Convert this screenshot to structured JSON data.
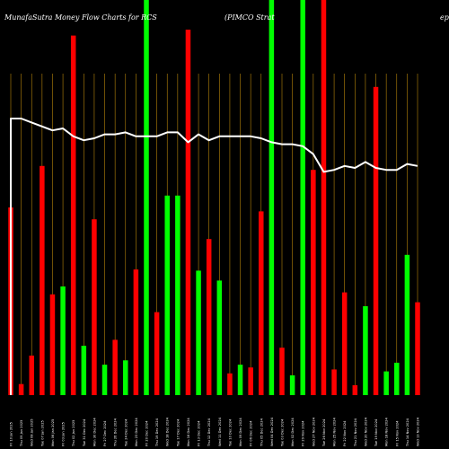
{
  "chart_data": {
    "type": "bar",
    "title": "MunafaSutra  Money Flow  Charts for RCS",
    "subtitle": "(PIMCO Strat",
    "title_right": "ep",
    "colors": {
      "up": "#00ff00",
      "down": "#ff0000",
      "line": "#ffffff",
      "grid": "#b8860b",
      "background": "#000000"
    },
    "ylim": [
      0,
      100
    ],
    "grid": true,
    "bars": [
      {
        "label": "Fri 10 Jan 2025",
        "color": "down",
        "value": 47.5
      },
      {
        "label": "Thu 09 Jan 2025",
        "color": "down",
        "value": 2.8
      },
      {
        "label": "Wed 08 Jan 2025",
        "color": "down",
        "value": 10
      },
      {
        "label": "Tue 07 Jan 2025",
        "color": "down",
        "value": 58
      },
      {
        "label": "Mon 06 Jan 2025",
        "color": "down",
        "value": 25.5
      },
      {
        "label": "Fri 03 Jan 2025",
        "color": "up",
        "value": 27.5
      },
      {
        "label": "Thu 02 Jan 2025",
        "color": "down",
        "value": 91
      },
      {
        "label": "Tue 31 Dec 2024",
        "color": "up",
        "value": 12.5
      },
      {
        "label": "Mon 30 Dec 2024",
        "color": "down",
        "value": 44.5
      },
      {
        "label": "Fri 27 Dec 2024",
        "color": "up",
        "value": 7.7
      },
      {
        "label": "Thu 26 Dec 2024",
        "color": "down",
        "value": 14
      },
      {
        "label": "Tue 24 Dec 2024",
        "color": "up",
        "value": 8.8
      },
      {
        "label": "Mon 23 Dec 2024",
        "color": "down",
        "value": 31.8
      },
      {
        "label": "Fri 20 Dec 2024",
        "color": "up",
        "value": 100
      },
      {
        "label": "Thu 19 Dec 2024",
        "color": "down",
        "value": 21
      },
      {
        "label": "Wed 18 Dec 2024",
        "color": "up",
        "value": 50.5
      },
      {
        "label": "Tue 17 Dec 2024",
        "color": "up",
        "value": 50.5
      },
      {
        "label": "Mon 16 Dec 2024",
        "color": "down",
        "value": 92.5
      },
      {
        "label": "Fri 13 Dec 2024",
        "color": "up",
        "value": 31.5
      },
      {
        "label": "Thu 12 Dec 2024",
        "color": "down",
        "value": 39.5
      },
      {
        "label": "Wed 11 Dec 2024",
        "color": "up",
        "value": 29
      },
      {
        "label": "Tue 10 Dec 2024",
        "color": "down",
        "value": 5.5
      },
      {
        "label": "Mon 09 Dec 2024",
        "color": "up",
        "value": 7.7
      },
      {
        "label": "Fri 06 Dec 2024",
        "color": "down",
        "value": 7
      },
      {
        "label": "Thu 05 Dec 2024",
        "color": "down",
        "value": 46.5
      },
      {
        "label": "Wed 04 Dec 2024",
        "color": "up",
        "value": 100
      },
      {
        "label": "Tue 03 Dec 2024",
        "color": "down",
        "value": 12
      },
      {
        "label": "Mon 02 Dec 2024",
        "color": "up",
        "value": 5
      },
      {
        "label": "Fri 29 Nov 2024",
        "color": "up",
        "value": 100
      },
      {
        "label": "Wed 27 Nov 2024",
        "color": "down",
        "value": 57
      },
      {
        "label": "Tue 26 Nov 2024",
        "color": "down",
        "value": 100
      },
      {
        "label": "Mon 25 Nov 2024",
        "color": "down",
        "value": 6.5
      },
      {
        "label": "Fri 22 Nov 2024",
        "color": "down",
        "value": 26
      },
      {
        "label": "Thu 21 Nov 2024",
        "color": "down",
        "value": 2.5
      },
      {
        "label": "Wed 20 Nov 2024",
        "color": "up",
        "value": 22.5
      },
      {
        "label": "Tue 19 Nov 2024",
        "color": "down",
        "value": 78
      },
      {
        "label": "Mon 18 Nov 2024",
        "color": "up",
        "value": 6
      },
      {
        "label": "Fri 15 Nov 2024",
        "color": "up",
        "value": 8.2
      },
      {
        "label": "Thu 14 Nov 2024",
        "color": "up",
        "value": 35.5
      },
      {
        "label": "Wed 13 Nov 2024",
        "color": "down",
        "value": 23.5
      }
    ],
    "line": [
      70,
      70,
      69,
      68,
      67,
      67.5,
      65.5,
      64.5,
      65,
      66,
      66,
      66.5,
      65.5,
      65.5,
      65.5,
      66.5,
      66.5,
      64,
      66,
      64.5,
      65.5,
      65.5,
      65.5,
      65.5,
      65,
      64,
      63.5,
      63.5,
      63,
      61,
      56.5,
      57,
      58,
      57.5,
      59,
      57.5,
      57,
      57,
      58.5,
      58
    ]
  }
}
